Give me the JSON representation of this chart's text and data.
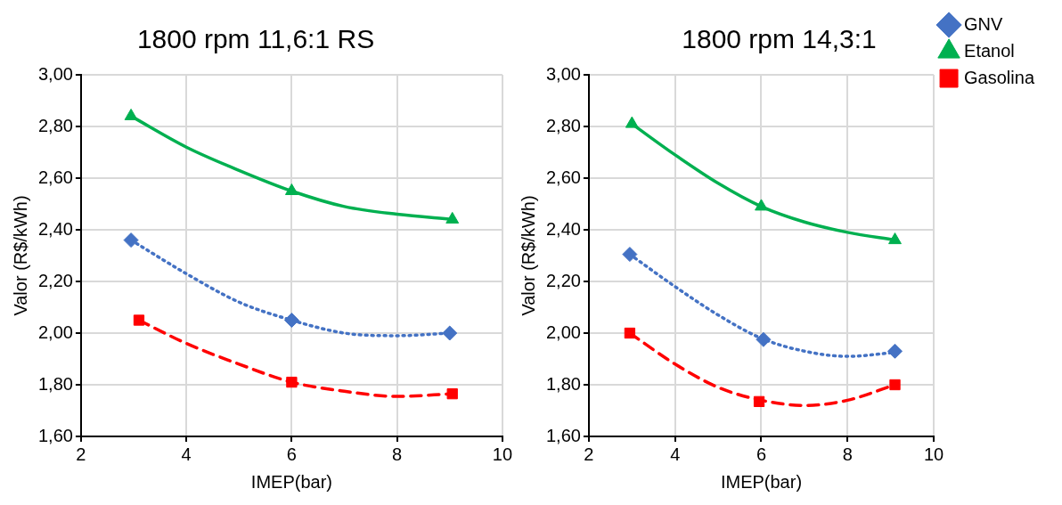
{
  "chart_data": [
    {
      "type": "scatter",
      "title": "1800 rpm 11,6:1 RS",
      "xlabel": "IMEP(bar)",
      "ylabel": "Valor (R$/kWh)",
      "xlim": [
        2,
        10
      ],
      "xticks": [
        2,
        4,
        6,
        8,
        10
      ],
      "ylim": [
        1.6,
        3.0
      ],
      "yticks": [
        {
          "value": 1.6,
          "label": "1,60"
        },
        {
          "value": 1.8,
          "label": "1,80"
        },
        {
          "value": 2.0,
          "label": "2,00"
        },
        {
          "value": 2.2,
          "label": "2,20"
        },
        {
          "value": 2.4,
          "label": "2,40"
        },
        {
          "value": 2.6,
          "label": "2,60"
        },
        {
          "value": 2.8,
          "label": "2,80"
        },
        {
          "value": 3.0,
          "label": "3,00"
        }
      ],
      "grid": true,
      "series": [
        {
          "marker": "diamond",
          "color": "#4472c4",
          "x": [
            2.95,
            6.0,
            9.0
          ],
          "values": [
            2.36,
            2.05,
            2.0
          ]
        },
        {
          "marker": "triangle",
          "color": "#00b050",
          "x": [
            2.95,
            6.0,
            9.05
          ],
          "values": [
            2.84,
            2.55,
            2.44
          ]
        },
        {
          "marker": "square",
          "color": "#ff0000",
          "x": [
            3.1,
            6.0,
            9.05
          ],
          "values": [
            2.05,
            1.81,
            1.765
          ]
        },
        {
          "type": "line",
          "marker": "none",
          "line_style": "dotted",
          "color": "#4472c4",
          "x": [
            2.95,
            4,
            5,
            6,
            7,
            8,
            9
          ],
          "values": [
            2.36,
            2.23,
            2.12,
            2.05,
            2.0,
            1.99,
            2.0
          ]
        },
        {
          "type": "line",
          "marker": "none",
          "line_style": "solid",
          "color": "#00b050",
          "x": [
            2.95,
            4,
            5,
            6,
            7,
            8,
            9.05
          ],
          "values": [
            2.84,
            2.72,
            2.63,
            2.55,
            2.49,
            2.46,
            2.44
          ]
        },
        {
          "type": "line",
          "marker": "none",
          "line_style": "dashed",
          "color": "#ff0000",
          "x": [
            3.1,
            4,
            5,
            6,
            7,
            8,
            9.05
          ],
          "values": [
            2.05,
            1.96,
            1.88,
            1.81,
            1.775,
            1.755,
            1.765
          ]
        }
      ]
    },
    {
      "type": "scatter",
      "title": "1800 rpm 14,3:1",
      "xlabel": "IMEP(bar)",
      "ylabel": "Valor (R$/kWh)",
      "xlim": [
        2,
        10
      ],
      "xticks": [
        2,
        4,
        6,
        8,
        10
      ],
      "ylim": [
        1.6,
        3.0
      ],
      "yticks": [
        {
          "value": 1.6,
          "label": "1,60"
        },
        {
          "value": 1.8,
          "label": "1,80"
        },
        {
          "value": 2.0,
          "label": "2,00"
        },
        {
          "value": 2.2,
          "label": "2,20"
        },
        {
          "value": 2.4,
          "label": "2,40"
        },
        {
          "value": 2.6,
          "label": "2,60"
        },
        {
          "value": 2.8,
          "label": "2,80"
        },
        {
          "value": 3.0,
          "label": "3,00"
        }
      ],
      "grid": true,
      "legend": "top right",
      "series": [
        {
          "name": "GNV",
          "marker": "diamond",
          "color": "#4472c4",
          "x": [
            2.95,
            6.05,
            9.1
          ],
          "values": [
            2.305,
            1.975,
            1.93
          ]
        },
        {
          "name": "Etanol",
          "marker": "triangle",
          "color": "#00b050",
          "x": [
            3.0,
            6.0,
            9.1
          ],
          "values": [
            2.81,
            2.49,
            2.36
          ]
        },
        {
          "name": "Gasolina",
          "marker": "square",
          "color": "#ff0000",
          "x": [
            2.95,
            5.95,
            9.1
          ],
          "values": [
            2.0,
            1.735,
            1.8
          ]
        },
        {
          "type": "line",
          "marker": "none",
          "line_style": "dotted",
          "color": "#4472c4",
          "x": [
            2.95,
            4,
            5,
            6,
            7,
            8,
            9.1
          ],
          "values": [
            2.305,
            2.18,
            2.07,
            1.98,
            1.93,
            1.91,
            1.925
          ]
        },
        {
          "type": "line",
          "marker": "none",
          "line_style": "solid",
          "color": "#00b050",
          "x": [
            3.0,
            4,
            5,
            6,
            7,
            8,
            9.1
          ],
          "values": [
            2.81,
            2.69,
            2.58,
            2.49,
            2.43,
            2.39,
            2.36
          ]
        },
        {
          "type": "line",
          "marker": "none",
          "line_style": "dashed",
          "color": "#ff0000",
          "x": [
            2.95,
            4,
            5,
            6,
            7,
            8,
            9.1
          ],
          "values": [
            2.0,
            1.88,
            1.79,
            1.74,
            1.72,
            1.74,
            1.8
          ]
        }
      ]
    }
  ]
}
